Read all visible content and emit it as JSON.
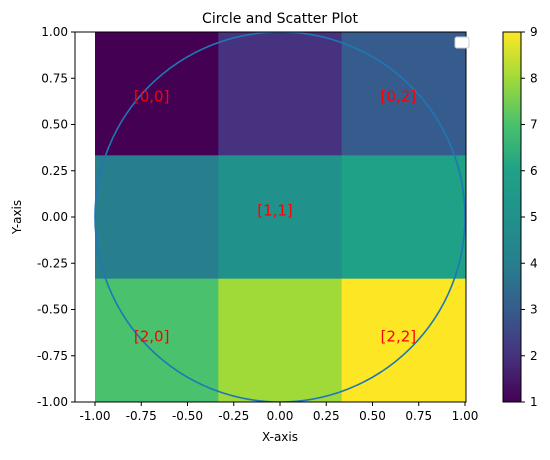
{
  "chart_data": {
    "type": "heatmap",
    "title": "Circle and Scatter Plot",
    "xlabel": "X-axis",
    "ylabel": "Y-axis",
    "xlim": [
      -1.0,
      1.0
    ],
    "ylim": [
      -1.0,
      1.0
    ],
    "x_ticks": [
      "-1.00",
      "-0.75",
      "-0.50",
      "-0.25",
      "0.00",
      "0.25",
      "0.50",
      "0.75",
      "1.00"
    ],
    "y_ticks": [
      "-1.00",
      "-0.75",
      "-0.50",
      "-0.25",
      "0.00",
      "0.25",
      "0.50",
      "0.75",
      "1.00"
    ],
    "grid": [
      [
        1,
        2,
        3
      ],
      [
        4,
        5,
        6
      ],
      [
        7,
        8,
        9
      ]
    ],
    "colormap": "viridis",
    "color_range": [
      1,
      9
    ],
    "colorbar_ticks": [
      "1",
      "2",
      "3",
      "4",
      "5",
      "6",
      "7",
      "8",
      "9"
    ],
    "cell_labels": [
      {
        "text": "[0,0]",
        "row": 0,
        "col": 0
      },
      {
        "text": "[0,2]",
        "row": 0,
        "col": 2
      },
      {
        "text": "[1,1]",
        "row": 1,
        "col": 1
      },
      {
        "text": "[2,0]",
        "row": 2,
        "col": 0
      },
      {
        "text": "[2,2]",
        "row": 2,
        "col": 2
      }
    ],
    "cell_label_color": "#ff0000",
    "circle": {
      "center": [
        0,
        0
      ],
      "radius": 1.0,
      "color": "#1f77b4"
    },
    "legend": "top-right, empty"
  }
}
